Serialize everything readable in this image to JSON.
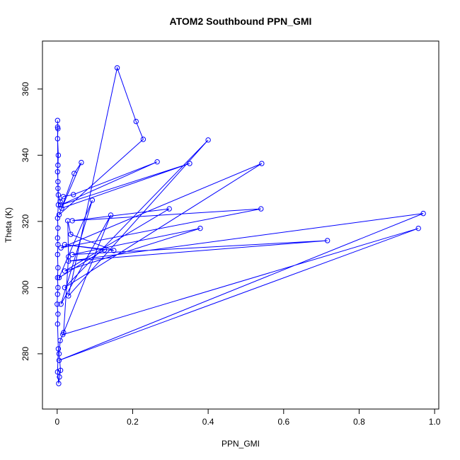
{
  "chart_data": {
    "type": "line",
    "title": "ATOM2 Southbound PPN_GMI",
    "x_label": "PPN_GMI",
    "y_label": "Theta (K)",
    "x": [
      0.001,
      0.002,
      0.001,
      0.003,
      0.002,
      0.001,
      0.002,
      0.003,
      0.008,
      0.016,
      0.043,
      0.265,
      0.01,
      0.351,
      0.012,
      0.064,
      0.045,
      0.005,
      0.228,
      0.209,
      0.159,
      0.03,
      0.4,
      0.02,
      0.542,
      0.01,
      0.54,
      0.04,
      0.297,
      0.02,
      0.379,
      0.04,
      0.716,
      0.03,
      0.97,
      0.005,
      0.957,
      0.015,
      0.142,
      0.01,
      0.093,
      0.005,
      0.125,
      0.02,
      0.15,
      0.036,
      0.028,
      0.03,
      0.017,
      0.008,
      0.005,
      0.009,
      0.006,
      0.004,
      0.001,
      0.003,
      0.001,
      0.002,
      0.0,
      0.001,
      0.002,
      0.001,
      0.002,
      0.001,
      0.002,
      0.001,
      0.002,
      0.001,
      0.003,
      0.002,
      0.001
    ],
    "series": [
      {
        "name": "PPN_GMI",
        "color": "#0000ff",
        "values": [
          350.5,
          348,
          345,
          340,
          337,
          335,
          332,
          328,
          326,
          327.5,
          328.1,
          338.0,
          325,
          337.5,
          324,
          337.8,
          334.5,
          322,
          344.8,
          350.2,
          366.4,
          297.5,
          344.6,
          300,
          337.5,
          312,
          323.8,
          320.2,
          323.8,
          305,
          317.9,
          310,
          314.2,
          308,
          322.4,
          278,
          317.9,
          285.8,
          321.9,
          295,
          326.4,
          303,
          311.4,
          313,
          311.2,
          316.1,
          320.2,
          309.3,
          286.4,
          284,
          280,
          275,
          273,
          271,
          274.5,
          281.5,
          289,
          292,
          295,
          298,
          300,
          303,
          306,
          310,
          313,
          315,
          318,
          321,
          325,
          330,
          348.5
        ]
      }
    ],
    "xlim": [
      -0.039,
      1.011
    ],
    "ylim": [
      263.3,
      374.5
    ],
    "xticks": [
      0.0,
      0.2,
      0.4,
      0.6,
      0.8,
      {
        "value": 1.0,
        "label": "1.0"
      }
    ],
    "yticks": [
      280,
      300,
      320,
      340,
      360
    ]
  }
}
